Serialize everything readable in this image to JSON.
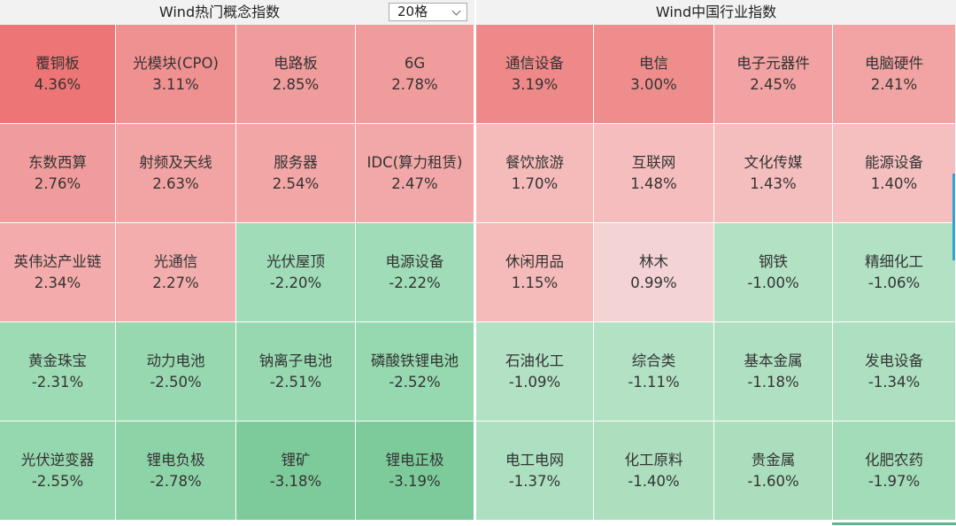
{
  "left_panel": {
    "title": "Wind热门概念指数",
    "dropdown": {
      "value": "20格"
    },
    "tiles": [
      {
        "name": "覆铜板",
        "pct": "4.36%",
        "color": "#ee7575"
      },
      {
        "name": "光模块(CPO)",
        "pct": "3.11%",
        "color": "#f09191"
      },
      {
        "name": "电路板",
        "pct": "2.85%",
        "color": "#f09c9c"
      },
      {
        "name": "6G",
        "pct": "2.78%",
        "color": "#f09c9c"
      },
      {
        "name": "东数西算",
        "pct": "2.76%",
        "color": "#f09c9c"
      },
      {
        "name": "射频及天线",
        "pct": "2.63%",
        "color": "#f2a3a3"
      },
      {
        "name": "服务器",
        "pct": "2.54%",
        "color": "#f2a6a6"
      },
      {
        "name": "IDC(算力租赁)",
        "pct": "2.47%",
        "color": "#f2a8a8"
      },
      {
        "name": "英伟达产业链",
        "pct": "2.34%",
        "color": "#f3abab"
      },
      {
        "name": "光通信",
        "pct": "2.27%",
        "color": "#f3adad"
      },
      {
        "name": "光伏屋顶",
        "pct": "-2.20%",
        "color": "#9fdcb7"
      },
      {
        "name": "电源设备",
        "pct": "-2.22%",
        "color": "#9fdcb7"
      },
      {
        "name": "黄金珠宝",
        "pct": "-2.31%",
        "color": "#9ddbb5"
      },
      {
        "name": "动力电池",
        "pct": "-2.50%",
        "color": "#97d8b0"
      },
      {
        "name": "钠离子电池",
        "pct": "-2.51%",
        "color": "#97d8b0"
      },
      {
        "name": "磷酸铁锂电池",
        "pct": "-2.52%",
        "color": "#96d8af"
      },
      {
        "name": "光伏逆变器",
        "pct": "-2.55%",
        "color": "#95d7ae"
      },
      {
        "name": "锂电负极",
        "pct": "-2.78%",
        "color": "#8dd3a8"
      },
      {
        "name": "锂矿",
        "pct": "-3.18%",
        "color": "#7dcb9b"
      },
      {
        "name": "锂电正极",
        "pct": "-3.19%",
        "color": "#7dcb9b"
      }
    ]
  },
  "right_panel": {
    "title": "Wind中国行业指数",
    "tiles": [
      {
        "name": "通信设备",
        "pct": "3.19%",
        "color": "#ef8989"
      },
      {
        "name": "电信",
        "pct": "3.00%",
        "color": "#ef8d8d"
      },
      {
        "name": "电子元器件",
        "pct": "2.45%",
        "color": "#f2a2a2"
      },
      {
        "name": "电脑硬件",
        "pct": "2.41%",
        "color": "#f2a4a4"
      },
      {
        "name": "餐饮旅游",
        "pct": "1.70%",
        "color": "#f5bbbb"
      },
      {
        "name": "互联网",
        "pct": "1.48%",
        "color": "#f5bdbd"
      },
      {
        "name": "文化传媒",
        "pct": "1.43%",
        "color": "#f5bebe"
      },
      {
        "name": "能源设备",
        "pct": "1.40%",
        "color": "#f5bfbf"
      },
      {
        "name": "休闲用品",
        "pct": "1.15%",
        "color": "#f5baba"
      },
      {
        "name": "林木",
        "pct": "0.99%",
        "color": "#f3d3d3"
      },
      {
        "name": "钢铁",
        "pct": "-1.00%",
        "color": "#b2e1c4"
      },
      {
        "name": "精细化工",
        "pct": "-1.06%",
        "color": "#b2e1c4"
      },
      {
        "name": "石油化工",
        "pct": "-1.09%",
        "color": "#b2e1c4"
      },
      {
        "name": "综合类",
        "pct": "-1.11%",
        "color": "#b2e1c4"
      },
      {
        "name": "基本金属",
        "pct": "-1.18%",
        "color": "#b0e0c2"
      },
      {
        "name": "发电设备",
        "pct": "-1.34%",
        "color": "#ade0c0"
      },
      {
        "name": "电工电网",
        "pct": "-1.37%",
        "color": "#ade0c0"
      },
      {
        "name": "化工原料",
        "pct": "-1.40%",
        "color": "#addfbf"
      },
      {
        "name": "贵金属",
        "pct": "-1.60%",
        "color": "#aadebd"
      },
      {
        "name": "化肥农药",
        "pct": "-1.97%",
        "color": "#a3dcb9"
      }
    ]
  }
}
